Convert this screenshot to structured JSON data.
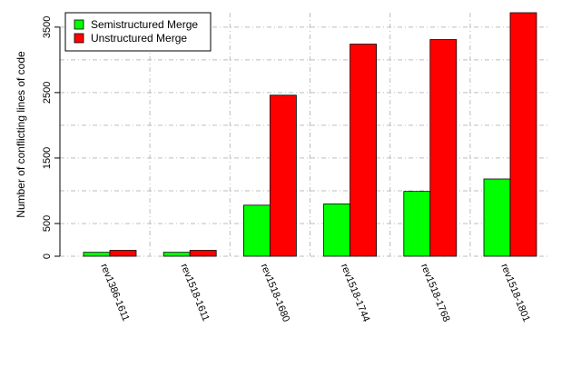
{
  "chart_data": {
    "type": "bar",
    "title": "",
    "xlabel": "",
    "ylabel": "Number of conflicting lines of code",
    "categories": [
      "rev1386-1611",
      "rev1518-1611",
      "rev1518-1680",
      "rev1518-1744",
      "rev1518-1768",
      "rev1518-1801"
    ],
    "series": [
      {
        "name": "Semistructured Merge",
        "color": "#00ff00",
        "values": [
          60,
          60,
          780,
          800,
          990,
          1180
        ]
      },
      {
        "name": "Unstructured Merge",
        "color": "#ff0000",
        "values": [
          90,
          90,
          2460,
          3240,
          3310,
          3720
        ]
      }
    ],
    "ylim": [
      0,
      3720
    ],
    "y_tick_labels": [
      "0",
      "500",
      "1500",
      "2500",
      "3500"
    ],
    "y_tick_values": [
      0,
      500,
      1500,
      2500,
      3500
    ],
    "y_gridlines": [
      0,
      500,
      1000,
      1500,
      2000,
      2500,
      3000,
      3500
    ],
    "grid": true,
    "legend_position": "top-left"
  }
}
